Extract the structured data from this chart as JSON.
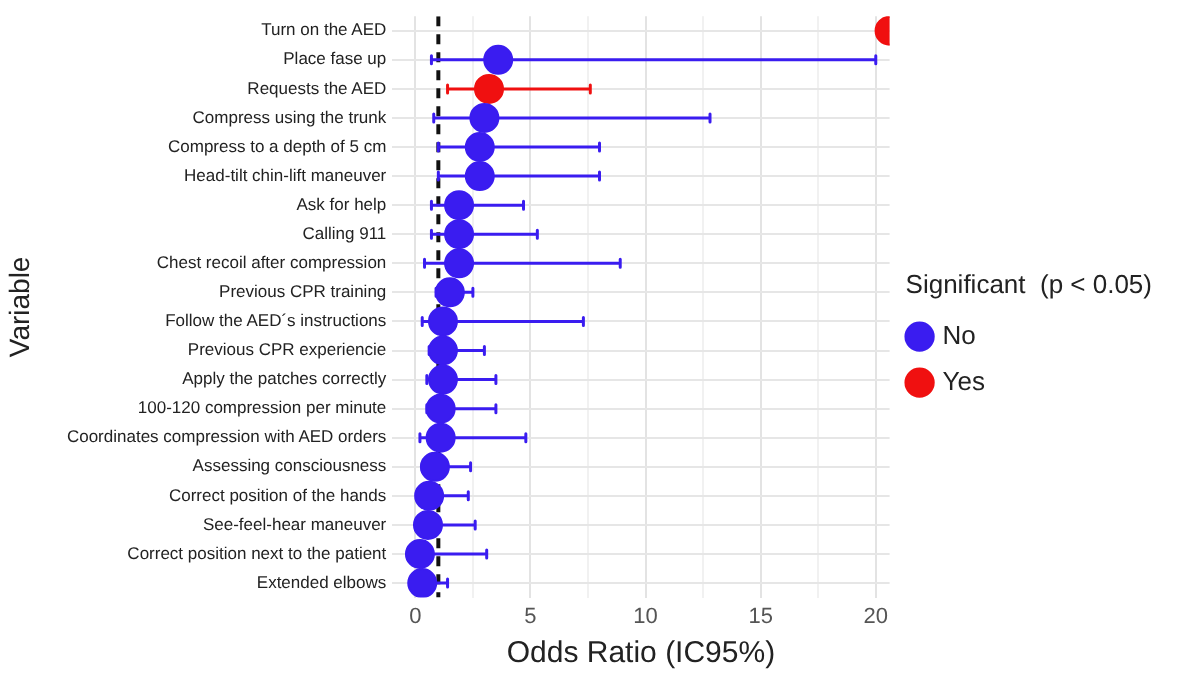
{
  "chart_data": {
    "type": "scatter",
    "orientation": "horizontal",
    "xlabel": "Odds Ratio (IC95%)",
    "ylabel": "Variable",
    "legend_title": "Significant  (p < 0.05)",
    "legend": "right",
    "marker": "circle",
    "grid": true,
    "categories": [
      "Turn on the AED",
      "Place fase up",
      "Requests the AED",
      "Compress using the trunk",
      "Compress to a depth of 5 cm",
      "Head-tilt chin-lift maneuver",
      "Ask for help",
      "Calling 911",
      "Chest recoil after compression",
      "Previous CPR training",
      "Follow the AED´s instructions",
      "Previous CPR experiencie",
      "Apply the patches correctly",
      "100-120 compression per minute",
      "Coordinates compression with AED orders",
      "Assessing consciousness",
      "Correct position of the hands",
      "See-feel-hear maneuver",
      "Correct position next to the patient",
      "Extended elbows"
    ],
    "xlim": [
      -1,
      20.6
    ],
    "xticks": [
      0,
      {
        "value": 2.5,
        "label": null
      },
      5,
      {
        "value": 7.5,
        "label": null
      },
      10,
      {
        "value": 12.5,
        "label": null
      },
      15,
      {
        "value": 17.5,
        "label": null
      },
      20
    ],
    "series": [
      {
        "name": "No",
        "color": "#3a1cf0",
        "values": [
          null,
          3.6,
          null,
          3.0,
          2.8,
          2.8,
          1.9,
          1.9,
          1.9,
          1.5,
          1.2,
          1.2,
          1.2,
          1.1,
          1.1,
          0.85,
          0.6,
          0.55,
          0.2,
          0.3
        ],
        "errors": [
          null,
          [
            0.7,
            20
          ],
          null,
          [
            0.8,
            12.8
          ],
          [
            1.0,
            8.0
          ],
          [
            1.0,
            8.0
          ],
          [
            0.7,
            4.7
          ],
          [
            0.7,
            5.3
          ],
          [
            0.4,
            8.9
          ],
          [
            0.9,
            2.5
          ],
          [
            0.3,
            7.3
          ],
          [
            0.6,
            3.0
          ],
          [
            0.5,
            3.5
          ],
          [
            0.5,
            3.5
          ],
          [
            0.2,
            4.8
          ],
          [
            0.3,
            2.4
          ],
          [
            0.2,
            2.3
          ],
          [
            0.2,
            2.6
          ],
          [
            0.2,
            3.1
          ],
          [
            0.3,
            1.4
          ]
        ]
      },
      {
        "name": "Yes",
        "color": "#f01010",
        "values": [
          20.6,
          null,
          3.2,
          null,
          null,
          null,
          null,
          null,
          null,
          null,
          null,
          null,
          null,
          null,
          null,
          null,
          null,
          null,
          null,
          null
        ],
        "errors": [
          null,
          null,
          [
            1.4,
            7.6
          ],
          null,
          null,
          null,
          null,
          null,
          null,
          null,
          null,
          null,
          null,
          null,
          null,
          null,
          null,
          null,
          null,
          null
        ]
      }
    ],
    "ref_lines": [
      {
        "axis": "x",
        "value": 1,
        "color": "#111111",
        "line_style": "dashed"
      }
    ]
  }
}
